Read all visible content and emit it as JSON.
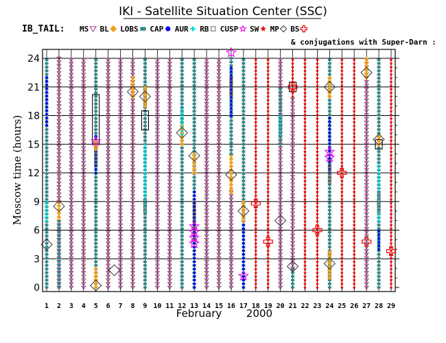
{
  "chart_data": {
    "type": "scatter",
    "title": "IKI - Satellite Situation Center (SSC)",
    "satellite_label": "IB_TAIL:",
    "conjugation_note": "& conjugations with Super-Darn :",
    "xlabel_month": "February",
    "xlabel_year": "2000",
    "ylabel": "Moscow time (hours)",
    "xlim": [
      1,
      29
    ],
    "ylim": [
      0,
      24
    ],
    "x_ticks": [
      1,
      2,
      3,
      4,
      5,
      6,
      7,
      8,
      9,
      10,
      11,
      12,
      13,
      14,
      15,
      16,
      17,
      18,
      19,
      20,
      21,
      22,
      23,
      24,
      25,
      26,
      27,
      28,
      29
    ],
    "y_ticks": [
      0,
      3,
      6,
      9,
      12,
      15,
      18,
      21,
      24
    ],
    "legend": [
      {
        "key": "MS",
        "label": "MS",
        "marker": "triangle-down",
        "color": "#8b2b6b"
      },
      {
        "key": "BL",
        "label": "BL",
        "marker": "diamond",
        "color": "#f0a020"
      },
      {
        "key": "LOBS",
        "label": "LOBS",
        "marker": "square",
        "color": "#2e8b8b"
      },
      {
        "key": "CAP",
        "label": "CAP",
        "marker": "dot",
        "color": "#0000ee"
      },
      {
        "key": "AUR",
        "label": "AUR",
        "marker": "star4",
        "color": "#00dddd"
      },
      {
        "key": "RB",
        "label": "RB",
        "marker": "square-open",
        "color": "#555555"
      },
      {
        "key": "CUSP",
        "label": "CUSP",
        "marker": "star5-open",
        "color": "#ee00ee"
      },
      {
        "key": "SW",
        "label": "SW",
        "marker": "star-filled",
        "color": "#ee0000"
      },
      {
        "key": "MP",
        "label": "MP",
        "marker": "diamond-open",
        "color": "#333333"
      },
      {
        "key": "BS",
        "label": "BS",
        "marker": "cross-open",
        "color": "#ee0000"
      }
    ],
    "columns": [
      {
        "day": 1,
        "segments": [
          [
            "LOBS",
            0,
            24
          ],
          [
            "CAP",
            17,
            22
          ],
          [
            "AUR",
            7,
            9
          ]
        ]
      },
      {
        "day": 2,
        "segments": [
          [
            "MS",
            0,
            7
          ],
          [
            "BL",
            7,
            9
          ],
          [
            "LOBS",
            0,
            7
          ],
          [
            "MS",
            9,
            24
          ]
        ]
      },
      {
        "day": 3,
        "segments": [
          [
            "MS",
            0,
            24
          ]
        ]
      },
      {
        "day": 4,
        "segments": [
          [
            "MS",
            0,
            24
          ]
        ]
      },
      {
        "day": 5,
        "segments": [
          [
            "LOBS",
            0,
            24
          ],
          [
            "BL",
            0,
            2
          ],
          [
            "CAP",
            12,
            16
          ],
          [
            "RB",
            13,
            15
          ],
          [
            "BL",
            14.5,
            15.5
          ]
        ]
      },
      {
        "day": 6,
        "segments": [
          [
            "MS",
            0,
            24
          ]
        ]
      },
      {
        "day": 7,
        "segments": [
          [
            "MS",
            0,
            24
          ]
        ]
      },
      {
        "day": 8,
        "segments": [
          [
            "MS",
            0,
            24
          ],
          [
            "BL",
            20,
            22
          ]
        ]
      },
      {
        "day": 9,
        "segments": [
          [
            "LOBS",
            0,
            24
          ],
          [
            "BL",
            19,
            21
          ],
          [
            "AUR",
            8,
            15
          ],
          [
            "RB",
            8,
            9.5
          ]
        ]
      },
      {
        "day": 10,
        "segments": [
          [
            "MS",
            0,
            24
          ]
        ]
      },
      {
        "day": 11,
        "segments": [
          [
            "MS",
            0,
            24
          ]
        ]
      },
      {
        "day": 12,
        "segments": [
          [
            "LOBS",
            0,
            24
          ],
          [
            "BL",
            15,
            17
          ],
          [
            "AUR",
            16,
            19
          ]
        ]
      },
      {
        "day": 13,
        "segments": [
          [
            "LOBS",
            0,
            24
          ],
          [
            "CAP",
            0,
            10
          ],
          [
            "BL",
            12,
            14
          ],
          [
            "RB",
            5,
            9
          ]
        ]
      },
      {
        "day": 14,
        "segments": [
          [
            "MS",
            0,
            24
          ]
        ]
      },
      {
        "day": 15,
        "segments": [
          [
            "MS",
            0,
            24
          ]
        ]
      },
      {
        "day": 16,
        "segments": [
          [
            "MS",
            0,
            10
          ],
          [
            "BL",
            10,
            14
          ],
          [
            "LOBS",
            14,
            24
          ],
          [
            "CAP",
            18,
            23
          ],
          [
            "RB",
            20,
            22
          ]
        ]
      },
      {
        "day": 17,
        "segments": [
          [
            "LOBS",
            0,
            24
          ],
          [
            "CAP",
            0,
            7
          ],
          [
            "BL",
            7,
            9
          ]
        ]
      },
      {
        "day": 18,
        "segments": [
          [
            "SW",
            0,
            24
          ]
        ]
      },
      {
        "day": 19,
        "segments": [
          [
            "SW",
            0,
            24
          ]
        ]
      },
      {
        "day": 20,
        "segments": [
          [
            "MS",
            0,
            24
          ],
          [
            "AUR",
            16,
            18
          ],
          [
            "LOBS",
            15,
            21
          ]
        ]
      },
      {
        "day": 21,
        "segments": [
          [
            "LOBS",
            0,
            2
          ],
          [
            "MS",
            2,
            20
          ],
          [
            "SW",
            20,
            24
          ]
        ]
      },
      {
        "day": 22,
        "segments": [
          [
            "SW",
            0,
            24
          ]
        ]
      },
      {
        "day": 23,
        "segments": [
          [
            "SW",
            0,
            24
          ]
        ]
      },
      {
        "day": 24,
        "segments": [
          [
            "LOBS",
            0,
            24
          ],
          [
            "BL",
            1,
            4
          ],
          [
            "CAP",
            12,
            18
          ],
          [
            "RB",
            11,
            13
          ],
          [
            "BL",
            20,
            22
          ]
        ]
      },
      {
        "day": 25,
        "segments": [
          [
            "SW",
            0,
            24
          ]
        ]
      },
      {
        "day": 26,
        "segments": [
          [
            "SW",
            0,
            24
          ]
        ]
      },
      {
        "day": 27,
        "segments": [
          [
            "MS",
            0,
            24
          ],
          [
            "BL",
            22,
            24
          ]
        ]
      },
      {
        "day": 28,
        "segments": [
          [
            "LOBS",
            0,
            24
          ],
          [
            "AUR",
            7,
            13
          ],
          [
            "CAP",
            4,
            6
          ],
          [
            "BL",
            15,
            16
          ],
          [
            "RB",
            8,
            10
          ]
        ]
      },
      {
        "day": 29,
        "segments": [
          [
            "SW",
            0,
            24
          ]
        ]
      }
    ],
    "events": [
      {
        "type": "MP",
        "day": 1,
        "hour": 4.5
      },
      {
        "type": "MP",
        "day": 2,
        "hour": 8.5
      },
      {
        "type": "MP",
        "day": 5,
        "hour": 0.2
      },
      {
        "type": "MP",
        "day": 6.5,
        "hour": 1.8
      },
      {
        "type": "MP",
        "day": 8,
        "hour": 20.5
      },
      {
        "type": "MP",
        "day": 9,
        "hour": 20
      },
      {
        "type": "MP",
        "day": 12,
        "hour": 16.2
      },
      {
        "type": "MP",
        "day": 13,
        "hour": 13.8
      },
      {
        "type": "MP",
        "day": 16,
        "hour": 11.8
      },
      {
        "type": "MP",
        "day": 17,
        "hour": 8
      },
      {
        "type": "MP",
        "day": 20,
        "hour": 7
      },
      {
        "type": "MP",
        "day": 21,
        "hour": 2.2
      },
      {
        "type": "MP",
        "day": 24,
        "hour": 21
      },
      {
        "type": "MP",
        "day": 24,
        "hour": 2.5
      },
      {
        "type": "MP",
        "day": 27,
        "hour": 22.5
      },
      {
        "type": "MP",
        "day": 28,
        "hour": 15.5
      },
      {
        "type": "BS",
        "day": 18,
        "hour": 8.8
      },
      {
        "type": "BS",
        "day": 19,
        "hour": 4.8
      },
      {
        "type": "BS",
        "day": 21,
        "hour": 21
      },
      {
        "type": "BS",
        "day": 23,
        "hour": 6
      },
      {
        "type": "BS",
        "day": 25,
        "hour": 12
      },
      {
        "type": "BS",
        "day": 27,
        "hour": 4.8
      },
      {
        "type": "BS",
        "day": 29,
        "hour": 3.8
      },
      {
        "type": "CUSP",
        "day": 5,
        "hour": 15.3
      },
      {
        "type": "CUSP",
        "day": 13,
        "hour": 6.4
      },
      {
        "type": "CUSP",
        "day": 13,
        "hour": 5.8
      },
      {
        "type": "CUSP",
        "day": 13,
        "hour": 5.2
      },
      {
        "type": "CUSP",
        "day": 13,
        "hour": 4.6
      },
      {
        "type": "CUSP",
        "day": 16,
        "hour": 24.6
      },
      {
        "type": "CUSP",
        "day": 17,
        "hour": 1.2
      },
      {
        "type": "CUSP",
        "day": 24,
        "hour": 14.2
      },
      {
        "type": "CUSP",
        "day": 24,
        "hour": 13.6
      }
    ],
    "boxes": [
      {
        "day": 5,
        "from": 15,
        "to": 20.2
      },
      {
        "day": 9,
        "from": 16.5,
        "to": 18.5
      },
      {
        "day": 21,
        "from": 20.5,
        "to": 21.5
      },
      {
        "day": 28,
        "from": 14.5,
        "to": 15.5
      }
    ],
    "grid": true
  }
}
